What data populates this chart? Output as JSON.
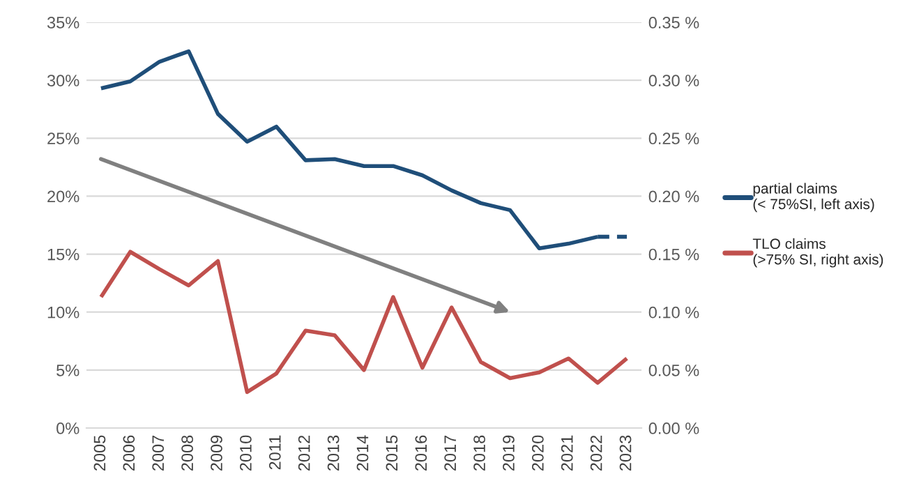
{
  "chart_data": {
    "type": "line",
    "categories": [
      "2005",
      "2006",
      "2007",
      "2008",
      "2009",
      "2010",
      "2011",
      "2012",
      "2013",
      "2014",
      "2015",
      "2016",
      "2017",
      "2018",
      "2019",
      "2020",
      "2021",
      "2022",
      "2023"
    ],
    "series": [
      {
        "name": "partial claims\n(< 75%SI, left axis)",
        "color": "#1f4e79",
        "line_style": "solid",
        "values": [
          29.3,
          29.9,
          31.6,
          32.5,
          27.1,
          24.7,
          26.0,
          23.1,
          23.2,
          22.6,
          22.6,
          21.8,
          20.5,
          19.4,
          18.8,
          15.5,
          15.9,
          16.5,
          null
        ]
      },
      {
        "color": "#1f4e79",
        "line_style": "dashed",
        "values": [
          null,
          null,
          null,
          null,
          null,
          null,
          null,
          null,
          null,
          null,
          null,
          null,
          null,
          null,
          null,
          null,
          null,
          16.5,
          16.5
        ]
      },
      {
        "name": "TLO claims\n(>75% SI, right axis)",
        "color": "#c0504d",
        "axis": "y2",
        "line_style": "solid",
        "values": [
          0.113,
          0.152,
          0.137,
          0.123,
          0.144,
          0.031,
          0.047,
          0.084,
          0.08,
          0.05,
          0.113,
          0.052,
          0.104,
          0.057,
          0.043,
          0.048,
          0.06,
          0.039,
          0.06
        ]
      }
    ],
    "ylim": [
      0,
      35
    ],
    "yticks": [
      {
        "value": 0,
        "label": "0%"
      },
      {
        "value": 5,
        "label": "5%"
      },
      {
        "value": 10,
        "label": "10%"
      },
      {
        "value": 15,
        "label": "15%"
      },
      {
        "value": 20,
        "label": "20%"
      },
      {
        "value": 25,
        "label": "25%"
      },
      {
        "value": 30,
        "label": "30%"
      },
      {
        "value": 35,
        "label": "35%"
      }
    ],
    "y2lim": [
      0,
      0.35
    ],
    "y2ticks": [
      {
        "value": 0,
        "label": "0.00 %"
      },
      {
        "value": 0.05,
        "label": "0.05 %"
      },
      {
        "value": 0.1,
        "label": "0.10 %"
      },
      {
        "value": 0.15,
        "label": "0.15 %"
      },
      {
        "value": 0.2,
        "label": "0.20 %"
      },
      {
        "value": 0.25,
        "label": "0.25 %"
      },
      {
        "value": 0.3,
        "label": "0.30 %"
      },
      {
        "value": 0.35,
        "label": "0.35 %"
      }
    ],
    "grid": "y",
    "legend": "right"
  }
}
